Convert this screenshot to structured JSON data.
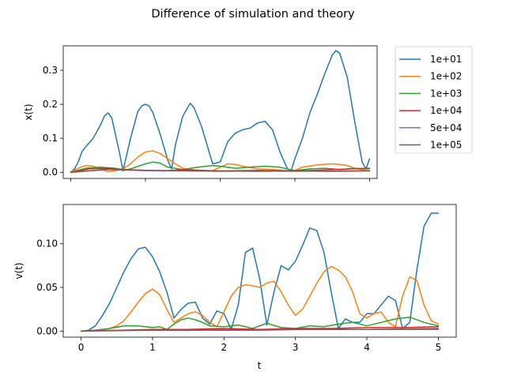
{
  "figure": {
    "title": "Difference of simulation and theory"
  },
  "colors": {
    "1e+01": "#1f77b4",
    "1e+02": "#ff7f0e",
    "1e+03": "#2ca02c",
    "1e+04": "#d62728",
    "5e+04": "#9467bd",
    "1e+05": "#8c564b"
  },
  "legend": {
    "placement": "outside-right",
    "entries": [
      "1e+01",
      "1e+02",
      "1e+03",
      "1e+04",
      "5e+04",
      "1e+05"
    ]
  },
  "chart_data": [
    {
      "type": "line",
      "title": "",
      "xlabel": "",
      "ylabel": "x(t)",
      "xlim": [
        -0.1,
        4.1
      ],
      "ylim": [
        -0.018,
        0.372
      ],
      "xticks": [
        0,
        1,
        2,
        3,
        4
      ],
      "xtick_labels_visible": false,
      "yticks": [
        0.0,
        0.1,
        0.2,
        0.3
      ],
      "ytick_labels": [
        "0.0",
        "0.1",
        "0.2",
        "0.3"
      ],
      "grid": false,
      "series": [
        {
          "name": "1e+01",
          "x": [
            0,
            0.05,
            0.1,
            0.15,
            0.2,
            0.3,
            0.4,
            0.45,
            0.5,
            0.55,
            0.65,
            0.7,
            0.8,
            0.9,
            0.95,
            1.0,
            1.05,
            1.1,
            1.2,
            1.3,
            1.35,
            1.4,
            1.5,
            1.55,
            1.6,
            1.65,
            1.75,
            1.9,
            2.0,
            2.1,
            2.2,
            2.3,
            2.4,
            2.5,
            2.6,
            2.7,
            2.8,
            2.9,
            2.95,
            3.0,
            3.1,
            3.2,
            3.3,
            3.4,
            3.5,
            3.55,
            3.6,
            3.7,
            3.8,
            3.9,
            3.95,
            4.0
          ],
          "y": [
            0,
            0.01,
            0.03,
            0.06,
            0.075,
            0.1,
            0.14,
            0.165,
            0.175,
            0.16,
            0.06,
            0.005,
            0.1,
            0.18,
            0.195,
            0.2,
            0.195,
            0.175,
            0.11,
            0.035,
            0.01,
            0.08,
            0.165,
            0.185,
            0.203,
            0.19,
            0.135,
            0.025,
            0.03,
            0.09,
            0.115,
            0.125,
            0.13,
            0.145,
            0.15,
            0.125,
            0.06,
            0.01,
            0.005,
            0.04,
            0.1,
            0.175,
            0.23,
            0.29,
            0.345,
            0.358,
            0.35,
            0.28,
            0.15,
            0.03,
            0.01,
            0.04
          ]
        },
        {
          "name": "1e+02",
          "x": [
            0,
            0.1,
            0.2,
            0.3,
            0.4,
            0.5,
            0.6,
            0.7,
            0.8,
            0.9,
            1.0,
            1.1,
            1.2,
            1.3,
            1.4,
            1.5,
            1.6,
            1.7,
            1.8,
            1.9,
            2.0,
            2.1,
            2.2,
            2.3,
            2.5,
            2.7,
            2.9,
            3.0,
            3.1,
            3.3,
            3.5,
            3.6,
            3.7,
            3.8,
            3.9,
            4.0
          ],
          "y": [
            0,
            0.012,
            0.02,
            0.018,
            0.01,
            0.002,
            0.005,
            0.01,
            0.025,
            0.045,
            0.06,
            0.063,
            0.055,
            0.04,
            0.025,
            0.012,
            0.008,
            0.006,
            0.005,
            0.005,
            0.015,
            0.025,
            0.023,
            0.018,
            0.01,
            0.008,
            0.005,
            0.006,
            0.015,
            0.022,
            0.025,
            0.023,
            0.02,
            0.012,
            0.008,
            0.004
          ]
        },
        {
          "name": "1e+03",
          "x": [
            0,
            0.2,
            0.4,
            0.6,
            0.7,
            0.8,
            1.0,
            1.1,
            1.2,
            1.3,
            1.5,
            1.7,
            1.9,
            2.0,
            2.2,
            2.4,
            2.6,
            2.8,
            3.0,
            3.2,
            3.4,
            3.6,
            3.8,
            4.0
          ],
          "y": [
            0,
            0.012,
            0.015,
            0.012,
            0.005,
            0.01,
            0.025,
            0.03,
            0.027,
            0.015,
            0.008,
            0.015,
            0.02,
            0.018,
            0.012,
            0.015,
            0.018,
            0.015,
            0.005,
            0.01,
            0.012,
            0.008,
            0.012,
            0.01
          ]
        },
        {
          "name": "1e+04",
          "x": [
            0,
            0.25,
            0.5,
            0.75,
            1.0,
            1.25,
            1.5,
            1.75,
            2.0,
            2.25,
            2.5,
            2.75,
            3.0,
            3.25,
            3.5,
            3.75,
            4.0
          ],
          "y": [
            0,
            0.01,
            0.012,
            0.008,
            0.006,
            0.004,
            0.008,
            0.006,
            0.004,
            0.005,
            0.006,
            0.005,
            0.004,
            0.006,
            0.008,
            0.01,
            0.012
          ]
        },
        {
          "name": "5e+04",
          "x": [
            0,
            0.5,
            1.0,
            1.5,
            2.0,
            2.5,
            3.0,
            3.5,
            4.0
          ],
          "y": [
            0,
            0.008,
            0.005,
            0.004,
            0.003,
            0.004,
            0.003,
            0.004,
            0.005
          ]
        },
        {
          "name": "1e+05",
          "x": [
            0,
            0.5,
            1.0,
            1.5,
            2.0,
            2.5,
            3.0,
            3.5,
            4.0
          ],
          "y": [
            0,
            0.009,
            0.006,
            0.005,
            0.004,
            0.003,
            0.004,
            0.003,
            0.004
          ]
        }
      ]
    },
    {
      "type": "line",
      "title": "",
      "xlabel": "t",
      "ylabel": "v(t)",
      "xlim": [
        -0.25,
        5.25
      ],
      "ylim": [
        -0.0069,
        0.1449
      ],
      "xticks": [
        0,
        1,
        2,
        3,
        4,
        5
      ],
      "xtick_labels": [
        "0",
        "1",
        "2",
        "3",
        "4",
        "5"
      ],
      "yticks": [
        0.0,
        0.05,
        0.1
      ],
      "ytick_labels": [
        "0.00",
        "0.05",
        "0.10"
      ],
      "grid": false,
      "series": [
        {
          "name": "1e+01",
          "x": [
            0,
            0.1,
            0.2,
            0.3,
            0.4,
            0.5,
            0.6,
            0.7,
            0.8,
            0.9,
            1.0,
            1.1,
            1.2,
            1.3,
            1.4,
            1.5,
            1.6,
            1.7,
            1.8,
            1.9,
            2.0,
            2.1,
            2.2,
            2.3,
            2.4,
            2.5,
            2.6,
            2.7,
            2.8,
            2.9,
            3.0,
            3.1,
            3.2,
            3.3,
            3.4,
            3.5,
            3.6,
            3.7,
            3.8,
            3.9,
            4.0,
            4.1,
            4.2,
            4.3,
            4.4,
            4.5,
            4.6,
            4.7,
            4.8,
            4.9,
            5.0
          ],
          "y": [
            0,
            0.001,
            0.006,
            0.018,
            0.032,
            0.05,
            0.068,
            0.083,
            0.094,
            0.096,
            0.085,
            0.068,
            0.045,
            0.015,
            0.025,
            0.032,
            0.033,
            0.015,
            0.008,
            0.023,
            0.02,
            0.002,
            0.03,
            0.09,
            0.095,
            0.06,
            0.007,
            0.045,
            0.075,
            0.07,
            0.08,
            0.098,
            0.118,
            0.115,
            0.09,
            0.045,
            0.003,
            0.014,
            0.01,
            0.01,
            0.02,
            0.02,
            0.03,
            0.04,
            0.035,
            0.003,
            0.01,
            0.07,
            0.12,
            0.135,
            0.135
          ]
        },
        {
          "name": "1e+02",
          "x": [
            0,
            0.2,
            0.4,
            0.5,
            0.6,
            0.7,
            0.8,
            0.9,
            1.0,
            1.1,
            1.2,
            1.3,
            1.4,
            1.5,
            1.6,
            1.7,
            1.8,
            1.9,
            2.0,
            2.1,
            2.2,
            2.3,
            2.4,
            2.5,
            2.6,
            2.7,
            2.8,
            2.9,
            3.0,
            3.1,
            3.2,
            3.3,
            3.4,
            3.5,
            3.6,
            3.7,
            3.8,
            3.9,
            4.0,
            4.1,
            4.2,
            4.3,
            4.4,
            4.5,
            4.6,
            4.7,
            4.8,
            4.9,
            5.0
          ],
          "y": [
            0,
            0.001,
            0.003,
            0.006,
            0.012,
            0.022,
            0.033,
            0.043,
            0.048,
            0.042,
            0.025,
            0.01,
            0.015,
            0.02,
            0.022,
            0.018,
            0.01,
            0.005,
            0.022,
            0.04,
            0.05,
            0.053,
            0.052,
            0.05,
            0.055,
            0.057,
            0.045,
            0.03,
            0.018,
            0.025,
            0.04,
            0.055,
            0.068,
            0.074,
            0.07,
            0.062,
            0.045,
            0.02,
            0.015,
            0.02,
            0.022,
            0.01,
            0.005,
            0.04,
            0.062,
            0.058,
            0.03,
            0.012,
            0.008
          ]
        },
        {
          "name": "1e+03",
          "x": [
            0,
            0.2,
            0.4,
            0.6,
            0.8,
            1.0,
            1.1,
            1.2,
            1.3,
            1.4,
            1.5,
            1.6,
            1.7,
            1.8,
            2.0,
            2.2,
            2.4,
            2.6,
            2.8,
            3.0,
            3.2,
            3.4,
            3.6,
            3.8,
            4.0,
            4.2,
            4.4,
            4.6,
            4.8,
            5.0
          ],
          "y": [
            0,
            0.001,
            0.003,
            0.006,
            0.006,
            0.004,
            0.005,
            0.002,
            0.008,
            0.013,
            0.015,
            0.013,
            0.01,
            0.006,
            0.005,
            0.007,
            0.003,
            0.009,
            0.004,
            0.003,
            0.006,
            0.005,
            0.008,
            0.01,
            0.006,
            0.01,
            0.014,
            0.016,
            0.01,
            0.006
          ]
        },
        {
          "name": "1e+04",
          "x": [
            0,
            0.5,
            1.0,
            1.5,
            2.0,
            2.5,
            3.0,
            3.5,
            4.0,
            4.5,
            5.0
          ],
          "y": [
            0,
            0.001,
            0.002,
            0.002,
            0.003,
            0.002,
            0.003,
            0.003,
            0.004,
            0.004,
            0.005
          ]
        },
        {
          "name": "5e+04",
          "x": [
            0,
            0.5,
            1.0,
            1.5,
            2.0,
            2.5,
            3.0,
            3.5,
            4.0,
            4.5,
            5.0
          ],
          "y": [
            0,
            0.001,
            0.001,
            0.001,
            0.001,
            0.001,
            0.002,
            0.002,
            0.002,
            0.002,
            0.002
          ]
        },
        {
          "name": "1e+05",
          "x": [
            0,
            0.5,
            1.0,
            1.5,
            2.0,
            2.5,
            3.0,
            3.5,
            4.0,
            4.5,
            5.0
          ],
          "y": [
            0,
            0.0005,
            0.001,
            0.0012,
            0.0015,
            0.0015,
            0.0018,
            0.002,
            0.002,
            0.0025,
            0.003
          ]
        }
      ]
    }
  ]
}
